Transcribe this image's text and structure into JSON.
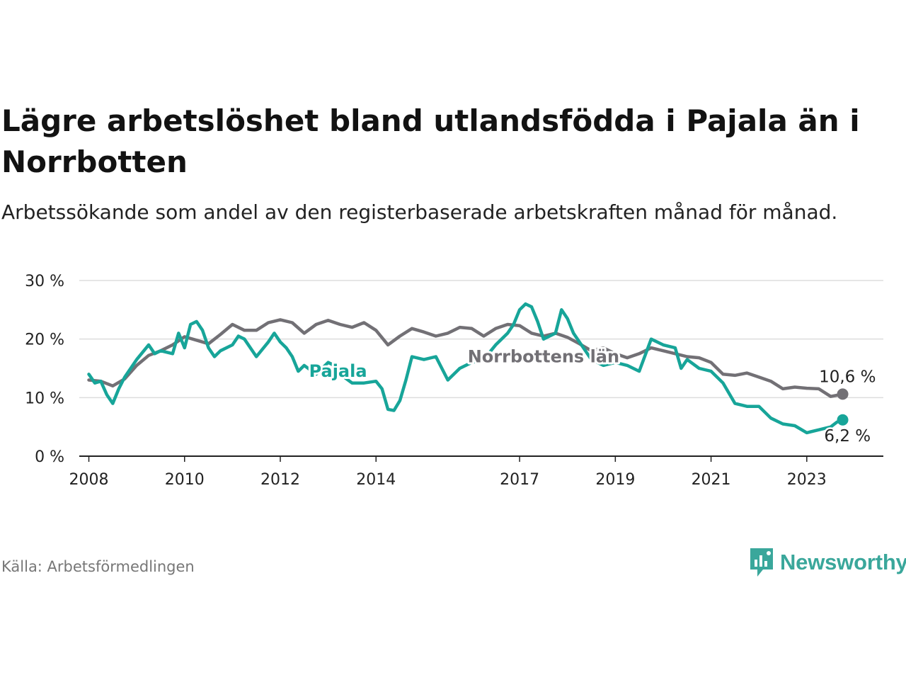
{
  "title": "Lägre arbetslöshet bland utlandsfödda i Pajala än i Norrbotten",
  "subtitle": "Arbetssökande som andel av den registerbaserade arbetskraften månad för månad.",
  "source": "Källa: Arbetsförmedlingen",
  "brand": "Newsworthy",
  "colors": {
    "norrbotten": "#727075",
    "pajala": "#17a599",
    "grid": "#dddddd",
    "axis": "#222222",
    "brand": "#3aa79b"
  },
  "chart_data": {
    "type": "line",
    "title": "Lägre arbetslöshet bland utlandsfödda i Pajala än i Norrbotten",
    "xlabel": "",
    "ylabel": "",
    "xlim": [
      2007.8,
      2024.6
    ],
    "ylim": [
      0,
      30
    ],
    "yticks": [
      0,
      10,
      20,
      30
    ],
    "ytick_labels": [
      "0 %",
      "10 %",
      "20 %",
      "30 %"
    ],
    "xticks": [
      2008,
      2010,
      2012,
      2014,
      2017,
      2019,
      2021,
      2023
    ],
    "xtick_labels": [
      "2008",
      "2010",
      "2012",
      "2014",
      "2017",
      "2019",
      "2021",
      "2023"
    ],
    "grid": true,
    "series": [
      {
        "name": "Norrbottens län",
        "label": "Norrbottens län",
        "end_label": "10,6 %",
        "color": "#727075",
        "x": [
          2008.0,
          2008.25,
          2008.5,
          2008.75,
          2009.0,
          2009.25,
          2009.5,
          2009.75,
          2010.0,
          2010.25,
          2010.5,
          2010.75,
          2011.0,
          2011.25,
          2011.5,
          2011.75,
          2012.0,
          2012.25,
          2012.5,
          2012.75,
          2013.0,
          2013.25,
          2013.5,
          2013.75,
          2014.0,
          2014.25,
          2014.5,
          2014.75,
          2015.0,
          2015.25,
          2015.5,
          2015.75,
          2016.0,
          2016.25,
          2016.5,
          2016.75,
          2017.0,
          2017.25,
          2017.5,
          2017.75,
          2018.0,
          2018.25,
          2018.5,
          2018.75,
          2019.0,
          2019.25,
          2019.5,
          2019.75,
          2020.0,
          2020.25,
          2020.5,
          2020.75,
          2021.0,
          2021.25,
          2021.5,
          2021.75,
          2022.0,
          2022.25,
          2022.5,
          2022.75,
          2023.0,
          2023.25,
          2023.5,
          2023.75
        ],
        "values": [
          13.0,
          12.8,
          12.0,
          13.2,
          15.5,
          17.2,
          18.0,
          19.0,
          20.4,
          19.8,
          19.2,
          20.8,
          22.5,
          21.5,
          21.5,
          22.8,
          23.3,
          22.8,
          21.0,
          22.5,
          23.2,
          22.5,
          22.0,
          22.8,
          21.5,
          19.0,
          20.5,
          21.8,
          21.2,
          20.5,
          21.0,
          22.0,
          21.8,
          20.5,
          21.8,
          22.5,
          22.3,
          21.0,
          20.5,
          21.0,
          20.3,
          19.2,
          18.0,
          18.5,
          17.5,
          16.8,
          17.5,
          18.5,
          18.0,
          17.5,
          17.0,
          16.8,
          16.0,
          14.0,
          13.8,
          14.2,
          13.5,
          12.8,
          11.5,
          11.8,
          11.6,
          11.5,
          10.2,
          10.6
        ]
      },
      {
        "name": "Pajala",
        "label": "Pajala",
        "end_label": "6,2 %",
        "color": "#17a599",
        "x": [
          2008.0,
          2008.125,
          2008.25,
          2008.375,
          2008.5,
          2008.625,
          2008.75,
          2009.0,
          2009.25,
          2009.375,
          2009.5,
          2009.75,
          2009.875,
          2010.0,
          2010.125,
          2010.25,
          2010.375,
          2010.5,
          2010.625,
          2010.75,
          2011.0,
          2011.125,
          2011.25,
          2011.5,
          2011.75,
          2011.875,
          2012.0,
          2012.125,
          2012.25,
          2012.375,
          2012.5,
          2012.75,
          2013.0,
          2013.125,
          2013.25,
          2013.5,
          2013.75,
          2014.0,
          2014.125,
          2014.25,
          2014.375,
          2014.5,
          2014.625,
          2014.75,
          2015.0,
          2015.25,
          2015.5,
          2015.75,
          2016.0,
          2016.25,
          2016.5,
          2016.75,
          2016.875,
          2017.0,
          2017.125,
          2017.25,
          2017.375,
          2017.5,
          2017.75,
          2017.875,
          2018.0,
          2018.125,
          2018.25,
          2018.5,
          2018.75,
          2019.0,
          2019.25,
          2019.5,
          2019.75,
          2020.0,
          2020.25,
          2020.375,
          2020.5,
          2020.75,
          2021.0,
          2021.25,
          2021.5,
          2021.75,
          2022.0,
          2022.25,
          2022.5,
          2022.75,
          2023.0,
          2023.25,
          2023.5,
          2023.625,
          2023.75
        ],
        "values": [
          14.0,
          12.5,
          12.8,
          10.5,
          9.0,
          11.5,
          13.5,
          16.5,
          19.0,
          17.5,
          18.0,
          17.5,
          21.0,
          18.5,
          22.5,
          23.0,
          21.5,
          18.5,
          17.0,
          18.0,
          19.0,
          20.5,
          20.0,
          17.0,
          19.5,
          21.0,
          19.5,
          18.5,
          17.0,
          14.5,
          15.5,
          14.0,
          16.0,
          15.5,
          14.0,
          12.5,
          12.5,
          12.8,
          11.5,
          8.0,
          7.8,
          9.5,
          13.0,
          17.0,
          16.5,
          17.0,
          13.0,
          15.0,
          16.0,
          16.5,
          19.0,
          21.0,
          22.5,
          25.0,
          26.0,
          25.5,
          23.0,
          20.0,
          21.0,
          25.0,
          23.5,
          21.0,
          19.5,
          16.5,
          15.5,
          16.0,
          15.5,
          14.5,
          20.0,
          19.0,
          18.5,
          15.0,
          16.5,
          15.0,
          14.5,
          12.5,
          9.0,
          8.5,
          8.5,
          6.5,
          5.5,
          5.2,
          4.0,
          4.5,
          5.0,
          5.8,
          6.2
        ]
      }
    ]
  }
}
